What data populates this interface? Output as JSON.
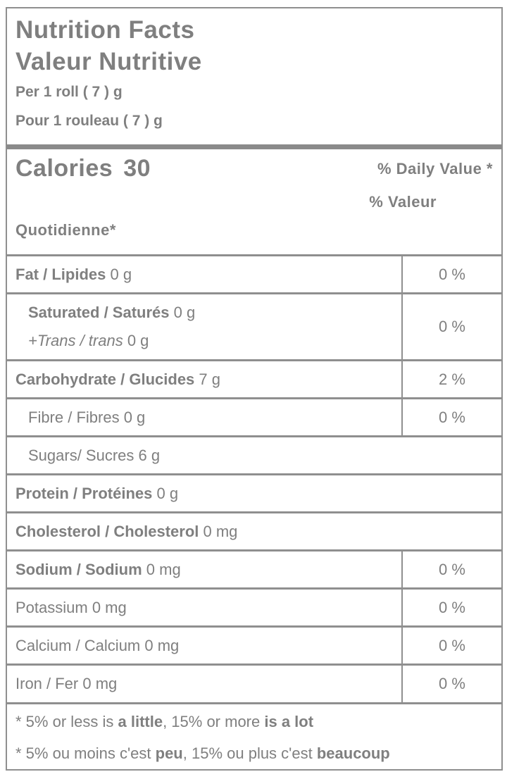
{
  "title": {
    "line1": "Nutrition Facts",
    "line2": "Valeur Nutritive"
  },
  "serving": {
    "en": "Per 1 roll ( 7 ) g",
    "fr": "Pour 1 rouleau ( 7 ) g"
  },
  "calories": {
    "label": "Calories",
    "value": "30"
  },
  "daily_value": {
    "line1": "% Daily Value *",
    "line2": "% Valeur",
    "line3": "Quotidienne*"
  },
  "colors": {
    "text": "#7f7f7f",
    "border": "#8f8f8f",
    "divider": "#8a8a8a"
  },
  "rows": [
    {
      "name": "fat",
      "dv": "0 %",
      "lines": [
        {
          "ind": false,
          "segments": [
            {
              "text": "Fat / Lipides",
              "bold": true
            },
            {
              "text": " 0 g"
            }
          ]
        }
      ]
    },
    {
      "name": "saturated-trans",
      "tall": true,
      "dv": "0 %",
      "lines": [
        {
          "ind": true,
          "segments": [
            {
              "text": "Saturated / Saturés",
              "bold": true
            },
            {
              "text": " 0 g"
            }
          ]
        },
        {
          "ind": true,
          "segments": [
            {
              "text": "+Trans / trans",
              "italic": true
            },
            {
              "text": " 0 g"
            }
          ]
        }
      ]
    },
    {
      "name": "carbohydrate",
      "dv": "2 %",
      "lines": [
        {
          "ind": false,
          "segments": [
            {
              "text": "Carbohydrate / Glucides",
              "bold": true
            },
            {
              "text": " 7 g"
            }
          ]
        }
      ]
    },
    {
      "name": "fibre",
      "dv": "0 %",
      "lines": [
        {
          "ind": true,
          "segments": [
            {
              "text": "Fibre / Fibres 0 g"
            }
          ]
        }
      ]
    },
    {
      "name": "sugars",
      "dv": null,
      "lines": [
        {
          "ind": true,
          "segments": [
            {
              "text": "Sugars/ Sucres 6 g"
            }
          ]
        }
      ]
    },
    {
      "name": "protein",
      "dv": null,
      "lines": [
        {
          "ind": false,
          "segments": [
            {
              "text": "Protein / Protéines",
              "bold": true
            },
            {
              "text": " 0 g"
            }
          ]
        }
      ]
    },
    {
      "name": "cholesterol",
      "dv": null,
      "lines": [
        {
          "ind": false,
          "segments": [
            {
              "text": "Cholesterol / Cholesterol",
              "bold": true
            },
            {
              "text": " 0 mg"
            }
          ]
        }
      ]
    },
    {
      "name": "sodium",
      "dv": "0 %",
      "lines": [
        {
          "ind": false,
          "segments": [
            {
              "text": "Sodium / Sodium",
              "bold": true
            },
            {
              "text": " 0 mg"
            }
          ]
        }
      ]
    },
    {
      "name": "potassium",
      "dv": "0 %",
      "lines": [
        {
          "ind": false,
          "segments": [
            {
              "text": "Potassium 0 mg"
            }
          ]
        }
      ]
    },
    {
      "name": "calcium",
      "dv": "0 %",
      "lines": [
        {
          "ind": false,
          "segments": [
            {
              "text": "Calcium / Calcium 0 mg"
            }
          ]
        }
      ]
    },
    {
      "name": "iron",
      "dv": "0 %",
      "lines": [
        {
          "ind": false,
          "segments": [
            {
              "text": "Iron / Fer 0 mg"
            }
          ]
        }
      ]
    }
  ],
  "footnotes": [
    {
      "name": "footnote-en",
      "segments": [
        {
          "text": "* 5% or less is "
        },
        {
          "text": "a little",
          "bold": true
        },
        {
          "text": ", 15% or more "
        },
        {
          "text": "is a lot",
          "bold": true
        }
      ]
    },
    {
      "name": "footnote-fr",
      "segments": [
        {
          "text": "* 5% ou moins c'est "
        },
        {
          "text": "peu",
          "bold": true
        },
        {
          "text": ", 15% ou plus c'est "
        },
        {
          "text": "beaucoup",
          "bold": true
        }
      ]
    }
  ]
}
